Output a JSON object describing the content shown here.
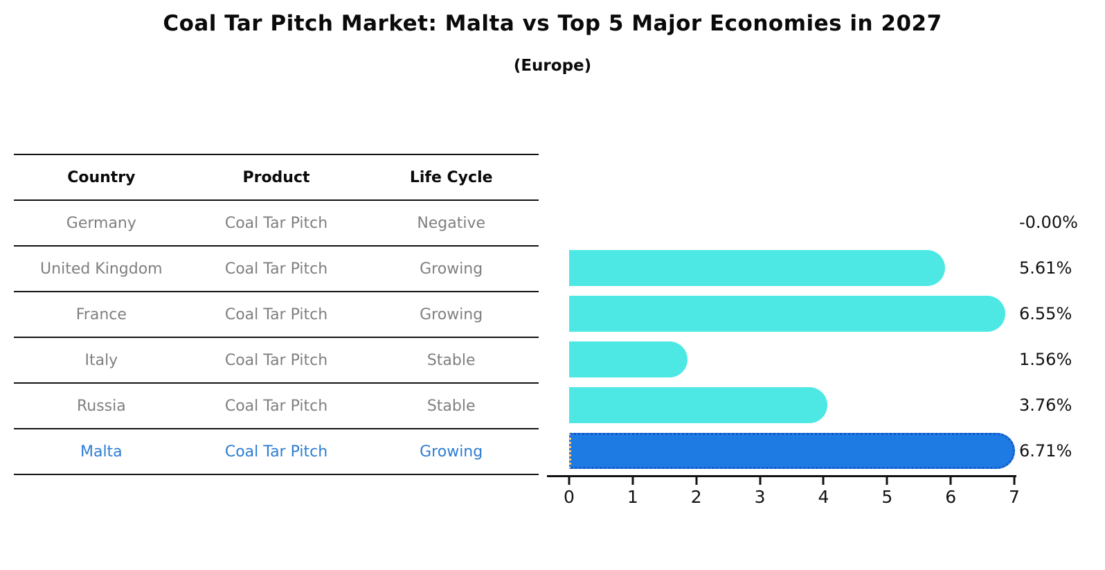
{
  "title": "Coal Tar Pitch Market: Malta vs Top 5 Major Economies in 2027",
  "subtitle": "(Europe)",
  "table": {
    "headers": [
      "Country",
      "Product",
      "Life Cycle"
    ],
    "rows": [
      {
        "country": "Germany",
        "product": "Coal Tar Pitch",
        "life_cycle": "Negative",
        "highlight": false
      },
      {
        "country": "United Kingdom",
        "product": "Coal Tar Pitch",
        "life_cycle": "Growing",
        "highlight": false
      },
      {
        "country": "France",
        "product": "Coal Tar Pitch",
        "life_cycle": "Growing",
        "highlight": false
      },
      {
        "country": "Italy",
        "product": "Coal Tar Pitch",
        "life_cycle": "Stable",
        "highlight": false
      },
      {
        "country": "Russia",
        "product": "Coal Tar Pitch",
        "life_cycle": "Stable",
        "highlight": false
      },
      {
        "country": "Malta",
        "product": "Coal Tar Pitch",
        "life_cycle": "Growing",
        "highlight": true
      }
    ]
  },
  "chart_data": {
    "type": "bar",
    "orientation": "horizontal",
    "title": "Coal Tar Pitch Market: Malta vs Top 5 Major Economies in 2027 (Europe)",
    "categories": [
      "Germany",
      "United Kingdom",
      "France",
      "Italy",
      "Russia",
      "Malta"
    ],
    "values": [
      -0.0,
      5.61,
      6.55,
      1.56,
      3.76,
      6.71
    ],
    "value_labels": [
      "-0.00%",
      "5.61%",
      "6.55%",
      "1.56%",
      "3.76%",
      "6.71%"
    ],
    "xlabel": "",
    "ylabel": "",
    "xlim": [
      0,
      7
    ],
    "x_ticks": [
      0,
      1,
      2,
      3,
      4,
      5,
      6,
      7
    ],
    "grid": false,
    "legend": false,
    "highlight_index": 5,
    "bar_color": "#4de8e4",
    "highlight_color": "#1e7be4",
    "highlight_edge_color": "#1456c8",
    "label_color": "#111111",
    "table_text_color": "#7f7f7f",
    "highlight_text_color": "#2e7dd1"
  }
}
